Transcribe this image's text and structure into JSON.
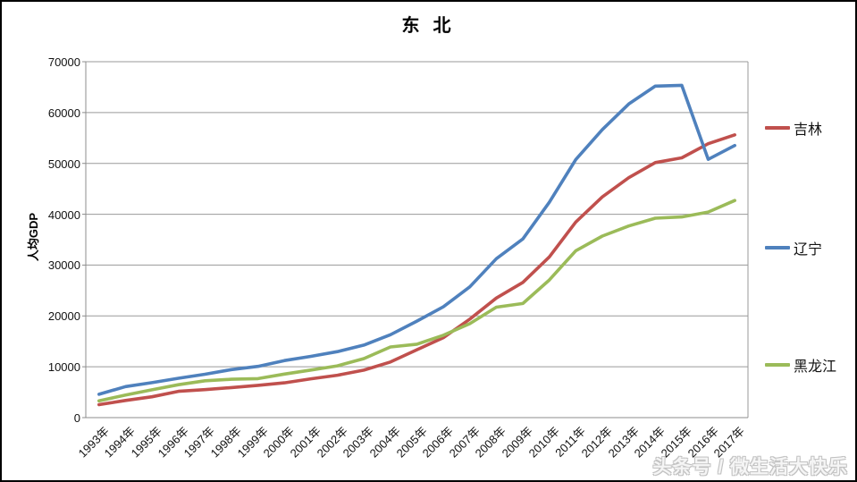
{
  "window": {
    "background": "#ffffff",
    "border_color": "#000000"
  },
  "chart_data": {
    "type": "line",
    "title": "东 北",
    "ylabel": "人均GDP",
    "xlabel": "",
    "ylim": [
      0,
      70000
    ],
    "y_ticks": [
      0,
      10000,
      20000,
      30000,
      40000,
      50000,
      60000,
      70000
    ],
    "grid": "horizontal",
    "legend_position": "right",
    "categories": [
      "1993年",
      "1994年",
      "1995年",
      "1996年",
      "1997年",
      "1998年",
      "1999年",
      "2000年",
      "2001年",
      "2002年",
      "2003年",
      "2004年",
      "2005年",
      "2006年",
      "2007年",
      "2008年",
      "2009年",
      "2010年",
      "2011年",
      "2012年",
      "2013年",
      "2014年",
      "2015年",
      "2016年",
      "2017年"
    ],
    "series": [
      {
        "name": "吉林",
        "color": "#C0504D",
        "values": [
          2548,
          3378,
          4104,
          5163,
          5504,
          5916,
          6341,
          6847,
          7640,
          8334,
          9338,
          10932,
          13348,
          15720,
          19383,
          23514,
          26595,
          31599,
          38460,
          43415,
          47191,
          50162,
          51086,
          53868,
          55611
        ]
      },
      {
        "name": "辽宁",
        "color": "#4F81BD",
        "values": [
          4596,
          6103,
          6880,
          7730,
          8525,
          9440,
          10086,
          11226,
          12041,
          12986,
          14258,
          16297,
          18983,
          21788,
          25729,
          31259,
          35149,
          42355,
          50760,
          56649,
          61686,
          65201,
          65354,
          50791,
          53527
        ]
      },
      {
        "name": "黑龙江",
        "color": "#9BBB59",
        "values": [
          3312,
          4427,
          5465,
          6468,
          7243,
          7544,
          7660,
          8562,
          9349,
          10184,
          11615,
          13897,
          14434,
          16195,
          18478,
          21727,
          22447,
          27076,
          32819,
          35711,
          37697,
          39226,
          39462,
          40432,
          42699
        ]
      }
    ],
    "colors": {
      "gridline": "#9a9a9a",
      "axis": "#8c8c8c"
    }
  },
  "watermark": {
    "text": "头条号 / 微生活大快乐"
  }
}
